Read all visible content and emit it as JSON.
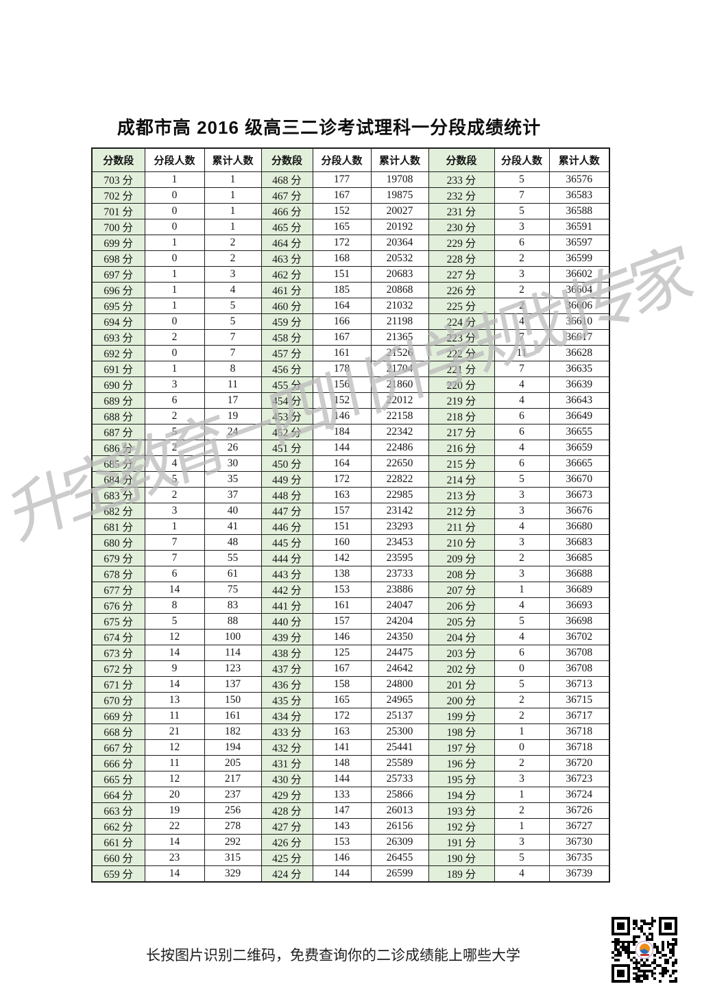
{
  "page": {
    "title": "成都市高 2016 级高三二诊考试理科一分段成绩统计",
    "footer_note": "长按图片识别二维码，免费查询你的二诊成绩能上哪些大学",
    "watermark": "升空教育－四川升学规划专家"
  },
  "colors": {
    "green_cell": "#e2efda",
    "border": "#1c1c1c",
    "watermark_gray": "#b9b9b9",
    "background": "#ffffff"
  },
  "table": {
    "headers": [
      "分数段",
      "分段人数",
      "累计人数",
      "分数段",
      "分段人数",
      "累计人数",
      "分数段",
      "分段人数",
      "累计人数"
    ],
    "rows": [
      [
        "703 分",
        "1",
        "1",
        "468 分",
        "177",
        "19708",
        "233 分",
        "5",
        "36576"
      ],
      [
        "702 分",
        "0",
        "1",
        "467 分",
        "167",
        "19875",
        "232 分",
        "7",
        "36583"
      ],
      [
        "701 分",
        "0",
        "1",
        "466 分",
        "152",
        "20027",
        "231 分",
        "5",
        "36588"
      ],
      [
        "700 分",
        "0",
        "1",
        "465 分",
        "165",
        "20192",
        "230 分",
        "3",
        "36591"
      ],
      [
        "699 分",
        "1",
        "2",
        "464 分",
        "172",
        "20364",
        "229 分",
        "6",
        "36597"
      ],
      [
        "698 分",
        "0",
        "2",
        "463 分",
        "168",
        "20532",
        "228 分",
        "2",
        "36599"
      ],
      [
        "697 分",
        "1",
        "3",
        "462 分",
        "151",
        "20683",
        "227 分",
        "3",
        "36602"
      ],
      [
        "696 分",
        "1",
        "4",
        "461 分",
        "185",
        "20868",
        "226 分",
        "2",
        "36604"
      ],
      [
        "695 分",
        "1",
        "5",
        "460 分",
        "164",
        "21032",
        "225 分",
        "2",
        "36606"
      ],
      [
        "694 分",
        "0",
        "5",
        "459 分",
        "166",
        "21198",
        "224 分",
        "4",
        "36610"
      ],
      [
        "693 分",
        "2",
        "7",
        "458 分",
        "167",
        "21365",
        "223 分",
        "7",
        "36617"
      ],
      [
        "692 分",
        "0",
        "7",
        "457 分",
        "161",
        "21526",
        "222 分",
        "11",
        "36628"
      ],
      [
        "691 分",
        "1",
        "8",
        "456 分",
        "178",
        "21704",
        "221 分",
        "7",
        "36635"
      ],
      [
        "690 分",
        "3",
        "11",
        "455 分",
        "156",
        "21860",
        "220 分",
        "4",
        "36639"
      ],
      [
        "689 分",
        "6",
        "17",
        "454 分",
        "152",
        "22012",
        "219 分",
        "4",
        "36643"
      ],
      [
        "688 分",
        "2",
        "19",
        "453 分",
        "146",
        "22158",
        "218 分",
        "6",
        "36649"
      ],
      [
        "687 分",
        "5",
        "24",
        "452 分",
        "184",
        "22342",
        "217 分",
        "6",
        "36655"
      ],
      [
        "686 分",
        "2",
        "26",
        "451 分",
        "144",
        "22486",
        "216 分",
        "4",
        "36659"
      ],
      [
        "685 分",
        "4",
        "30",
        "450 分",
        "164",
        "22650",
        "215 分",
        "6",
        "36665"
      ],
      [
        "684 分",
        "5",
        "35",
        "449 分",
        "172",
        "22822",
        "214 分",
        "5",
        "36670"
      ],
      [
        "683 分",
        "2",
        "37",
        "448 分",
        "163",
        "22985",
        "213 分",
        "3",
        "36673"
      ],
      [
        "682 分",
        "3",
        "40",
        "447 分",
        "157",
        "23142",
        "212 分",
        "3",
        "36676"
      ],
      [
        "681 分",
        "1",
        "41",
        "446 分",
        "151",
        "23293",
        "211 分",
        "4",
        "36680"
      ],
      [
        "680 分",
        "7",
        "48",
        "445 分",
        "160",
        "23453",
        "210 分",
        "3",
        "36683"
      ],
      [
        "679 分",
        "7",
        "55",
        "444 分",
        "142",
        "23595",
        "209 分",
        "2",
        "36685"
      ],
      [
        "678 分",
        "6",
        "61",
        "443 分",
        "138",
        "23733",
        "208 分",
        "3",
        "36688"
      ],
      [
        "677 分",
        "14",
        "75",
        "442 分",
        "153",
        "23886",
        "207 分",
        "1",
        "36689"
      ],
      [
        "676 分",
        "8",
        "83",
        "441 分",
        "161",
        "24047",
        "206 分",
        "4",
        "36693"
      ],
      [
        "675 分",
        "5",
        "88",
        "440 分",
        "157",
        "24204",
        "205 分",
        "5",
        "36698"
      ],
      [
        "674 分",
        "12",
        "100",
        "439 分",
        "146",
        "24350",
        "204 分",
        "4",
        "36702"
      ],
      [
        "673 分",
        "14",
        "114",
        "438 分",
        "125",
        "24475",
        "203 分",
        "6",
        "36708"
      ],
      [
        "672 分",
        "9",
        "123",
        "437 分",
        "167",
        "24642",
        "202 分",
        "0",
        "36708"
      ],
      [
        "671 分",
        "14",
        "137",
        "436 分",
        "158",
        "24800",
        "201 分",
        "5",
        "36713"
      ],
      [
        "670 分",
        "13",
        "150",
        "435 分",
        "165",
        "24965",
        "200 分",
        "2",
        "36715"
      ],
      [
        "669 分",
        "11",
        "161",
        "434 分",
        "172",
        "25137",
        "199 分",
        "2",
        "36717"
      ],
      [
        "668 分",
        "21",
        "182",
        "433 分",
        "163",
        "25300",
        "198 分",
        "1",
        "36718"
      ],
      [
        "667 分",
        "12",
        "194",
        "432 分",
        "141",
        "25441",
        "197 分",
        "0",
        "36718"
      ],
      [
        "666 分",
        "11",
        "205",
        "431 分",
        "148",
        "25589",
        "196 分",
        "2",
        "36720"
      ],
      [
        "665 分",
        "12",
        "217",
        "430 分",
        "144",
        "25733",
        "195 分",
        "3",
        "36723"
      ],
      [
        "664 分",
        "20",
        "237",
        "429 分",
        "133",
        "25866",
        "194 分",
        "1",
        "36724"
      ],
      [
        "663 分",
        "19",
        "256",
        "428 分",
        "147",
        "26013",
        "193 分",
        "2",
        "36726"
      ],
      [
        "662 分",
        "22",
        "278",
        "427 分",
        "143",
        "26156",
        "192 分",
        "1",
        "36727"
      ],
      [
        "661 分",
        "14",
        "292",
        "426 分",
        "153",
        "26309",
        "191 分",
        "3",
        "36730"
      ],
      [
        "660 分",
        "23",
        "315",
        "425 分",
        "146",
        "26455",
        "190 分",
        "5",
        "36735"
      ],
      [
        "659 分",
        "14",
        "329",
        "424 分",
        "144",
        "26599",
        "189 分",
        "4",
        "36739"
      ]
    ]
  }
}
